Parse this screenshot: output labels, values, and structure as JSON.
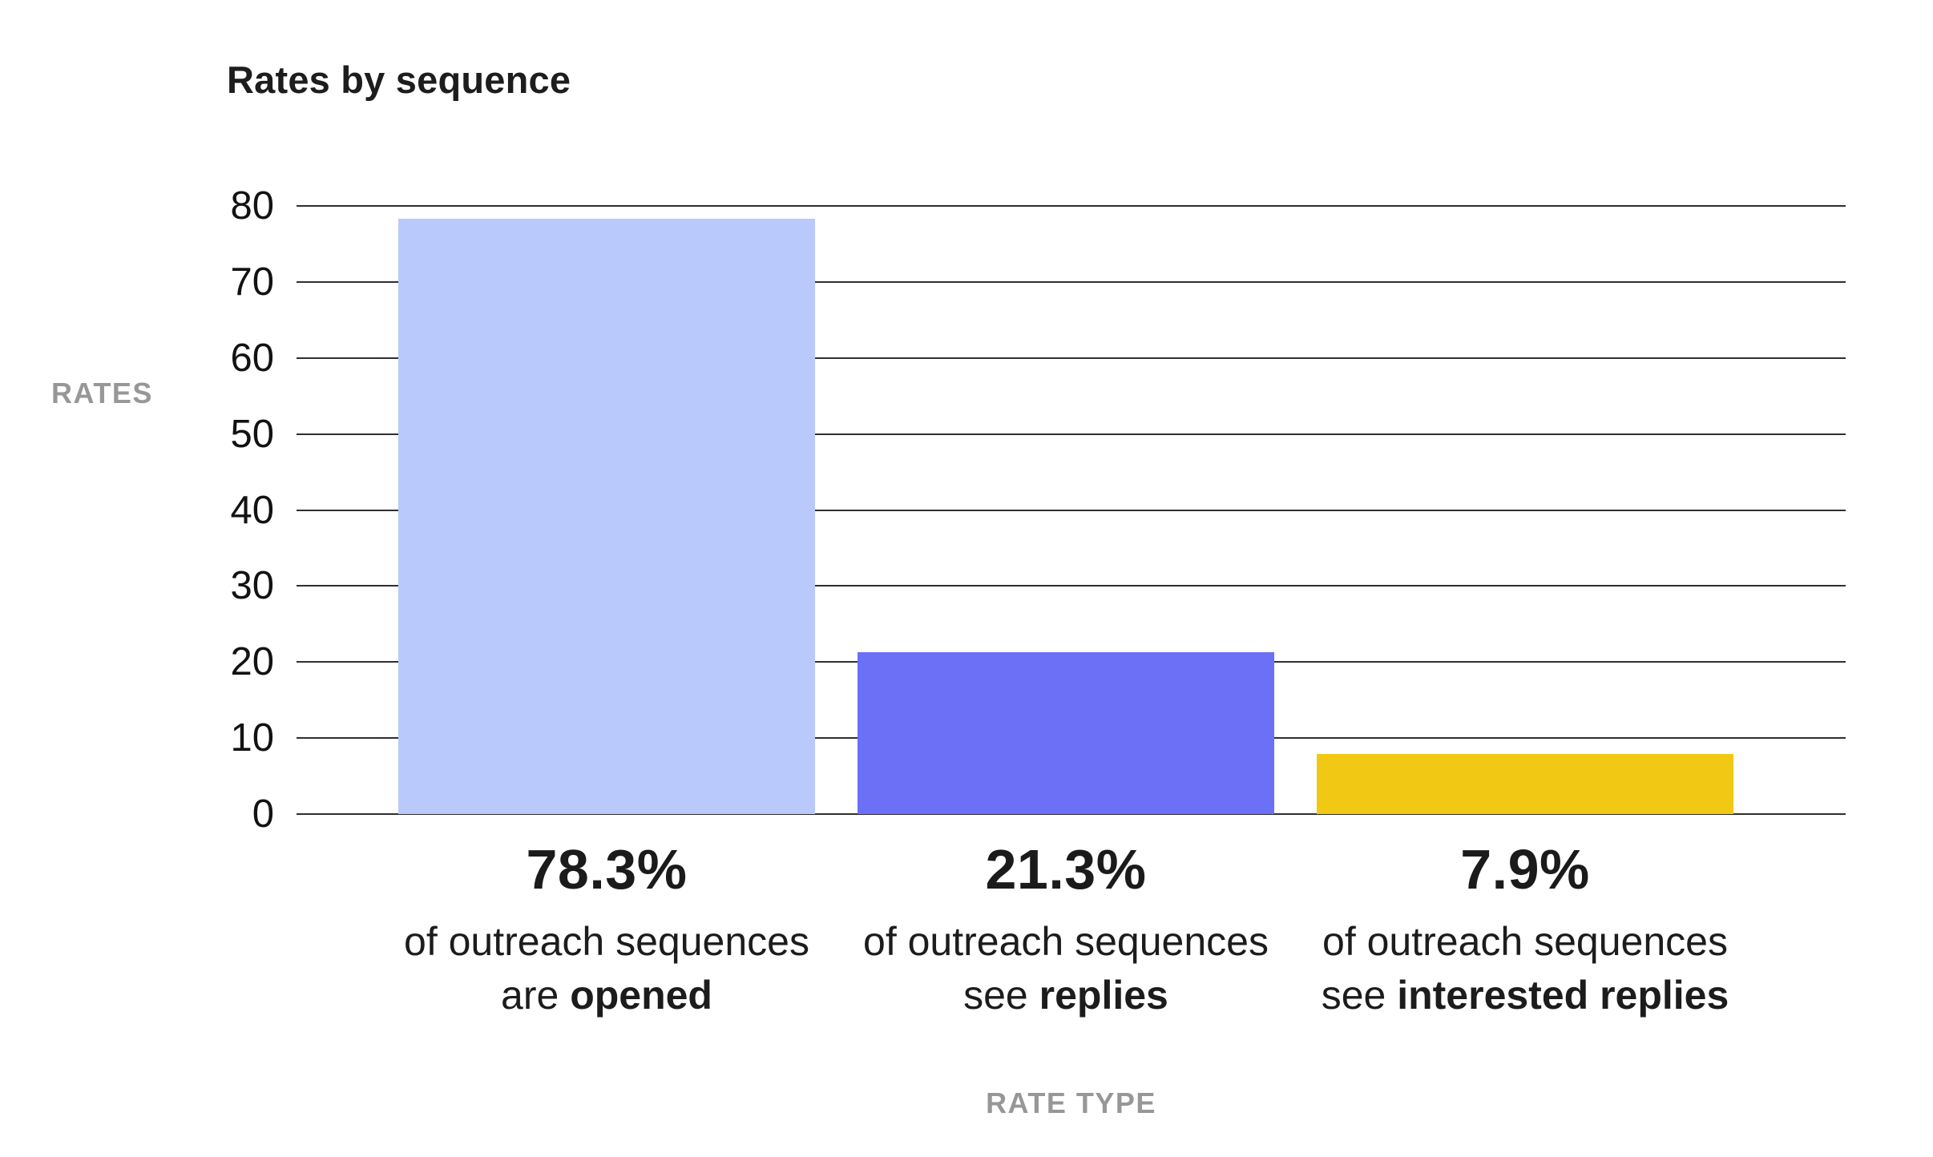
{
  "title": "Rates by sequence",
  "y_axis": {
    "label": "RATES",
    "ticks": [
      "80",
      "70",
      "60",
      "50",
      "40",
      "30",
      "20",
      "10",
      "0"
    ]
  },
  "x_axis": {
    "label": "RATE TYPE"
  },
  "colors": {
    "bar_opened": "#b9c9fc",
    "bar_replies": "#6b70f6",
    "bar_interested_replies": "#f1c813",
    "gridline": "#2f2f2f",
    "tick_text": "#121212",
    "axis_label_text": "#979797",
    "title_text": "#1d1d1d"
  },
  "chart_data": {
    "type": "bar",
    "title": "Rates by sequence",
    "xlabel": "RATE TYPE",
    "ylabel": "RATES",
    "categories": [
      "opened",
      "replies",
      "interested replies"
    ],
    "values": [
      78.3,
      21.3,
      7.9
    ],
    "ylim": [
      0,
      80
    ],
    "ytick_step": 10,
    "grid": "horizontal",
    "legend": "none",
    "bar_colors": [
      "#b9c9fc",
      "#6b70f6",
      "#f1c813"
    ],
    "bar_labels": [
      {
        "pct": "78.3%",
        "line1": "of outreach sequences",
        "line2_prefix": "are ",
        "line2_bold": "opened"
      },
      {
        "pct": "21.3%",
        "line1": "of outreach sequences",
        "line2_prefix": "see ",
        "line2_bold": "replies"
      },
      {
        "pct": "7.9%",
        "line1": "of outreach sequences",
        "line2_prefix": "see ",
        "line2_bold": "interested replies"
      }
    ]
  }
}
